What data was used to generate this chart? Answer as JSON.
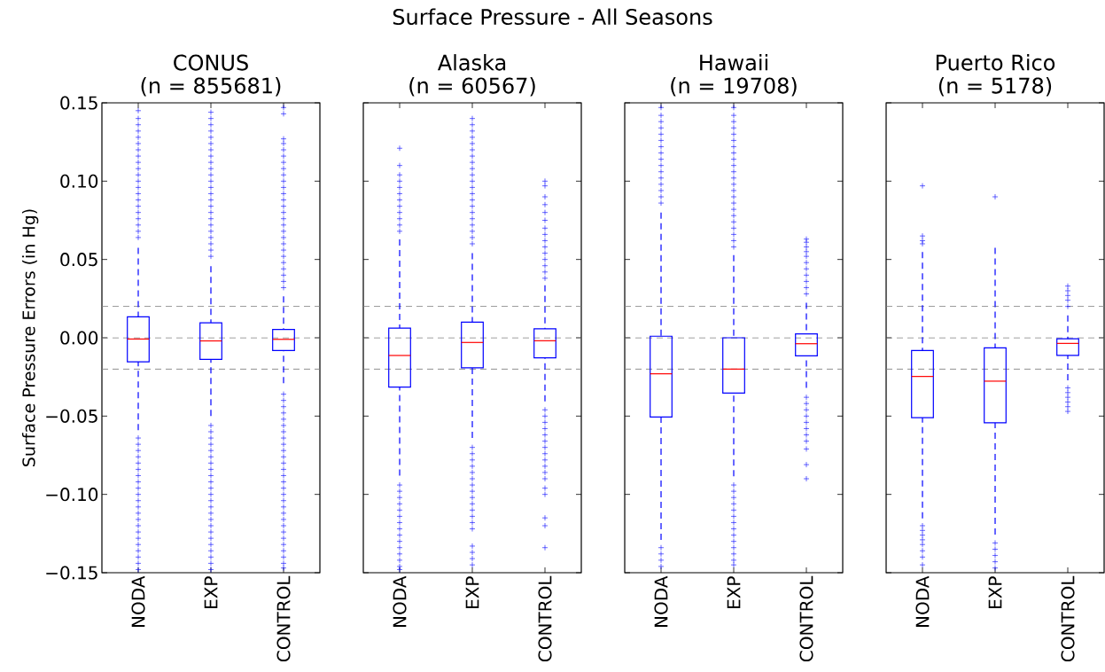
{
  "chart_data": [
    {
      "type": "box",
      "title": "CONUS",
      "subtitle": "(n = 855681)",
      "ylabel": "Surface Pressure Errors (in Hg)",
      "annotations": [
        "Surface Pressure - All Seasons"
      ],
      "categories": [
        "NODA",
        "EXP",
        "CONTROL"
      ],
      "color": "#0000ff",
      "ylim": [
        -0.15,
        0.15
      ],
      "yticks": [
        {
          "value": -0.15,
          "label": "−0.15"
        },
        {
          "value": -0.1,
          "label": "−0.10"
        },
        {
          "value": -0.05,
          "label": "−0.05"
        },
        {
          "value": 0,
          "label": "0.00"
        },
        {
          "value": 0.05,
          "label": "0.05"
        },
        {
          "value": 0.1,
          "label": "0.10"
        },
        {
          "value": 0.15,
          "label": "0.15"
        }
      ],
      "ref_lines": [
        {
          "axis": "y",
          "value": 0.02,
          "color": "#808080",
          "line_style": "dashed"
        },
        {
          "axis": "y",
          "value": 0,
          "color": "#808080",
          "line_style": "dashed"
        },
        {
          "axis": "y",
          "value": -0.02,
          "color": "#808080",
          "line_style": "dashed"
        }
      ],
      "boxes": [
        {
          "low": -0.059,
          "q1": -0.0153,
          "median": -0.0008,
          "q3": 0.0134,
          "high": 0.0575,
          "outliers": [
            0.064,
            0.068,
            0.072,
            0.076,
            0.08,
            0.084,
            0.088,
            0.092,
            0.096,
            0.1,
            0.104,
            0.108,
            0.112,
            0.116,
            0.12,
            0.124,
            0.128,
            0.132,
            0.136,
            0.14,
            0.145,
            -0.064,
            -0.068,
            -0.072,
            -0.076,
            -0.08,
            -0.084,
            -0.088,
            -0.092,
            -0.096,
            -0.1,
            -0.104,
            -0.108,
            -0.112,
            -0.116,
            -0.12,
            -0.124,
            -0.128,
            -0.132,
            -0.136,
            -0.14,
            -0.144,
            -0.148
          ]
        },
        {
          "low": -0.05,
          "q1": -0.0138,
          "median": -0.002,
          "q3": 0.0096,
          "high": 0.0457,
          "outliers": [
            0.052,
            0.056,
            0.06,
            0.064,
            0.068,
            0.072,
            0.076,
            0.08,
            0.084,
            0.088,
            0.092,
            0.096,
            0.1,
            0.104,
            0.108,
            0.112,
            0.116,
            0.12,
            0.124,
            0.128,
            0.132,
            0.136,
            0.14,
            0.144,
            -0.056,
            -0.06,
            -0.064,
            -0.068,
            -0.072,
            -0.076,
            -0.08,
            -0.084,
            -0.088,
            -0.092,
            -0.096,
            -0.1,
            -0.104,
            -0.108,
            -0.112,
            -0.116,
            -0.12,
            -0.124,
            -0.128,
            -0.132,
            -0.136,
            -0.14,
            -0.144,
            -0.148
          ]
        },
        {
          "low": -0.029,
          "q1": -0.0081,
          "median": -0.001,
          "q3": 0.0053,
          "high": 0.0264,
          "outliers": [
            0.032,
            0.036,
            0.04,
            0.044,
            0.048,
            0.052,
            0.056,
            0.06,
            0.064,
            0.068,
            0.072,
            0.076,
            0.08,
            0.084,
            0.088,
            0.092,
            0.096,
            0.1,
            0.104,
            0.108,
            0.112,
            0.116,
            0.12,
            0.124,
            0.127,
            0.143,
            0.147,
            -0.036,
            -0.04,
            -0.044,
            -0.048,
            -0.052,
            -0.056,
            -0.06,
            -0.064,
            -0.068,
            -0.072,
            -0.076,
            -0.08,
            -0.084,
            -0.088,
            -0.092,
            -0.096,
            -0.1,
            -0.104,
            -0.108,
            -0.112,
            -0.116,
            -0.12,
            -0.124,
            -0.128,
            -0.132,
            -0.136,
            -0.14,
            -0.144,
            -0.147
          ]
        }
      ]
    },
    {
      "type": "box",
      "title": "Alaska",
      "subtitle": "(n = 60567)",
      "categories": [
        "NODA",
        "EXP",
        "CONTROL"
      ],
      "color": "#0000ff",
      "tick_labels": "x",
      "ylim": [
        -0.15,
        0.15
      ],
      "yticks": [
        -0.15,
        -0.1,
        -0.05,
        0,
        0.05,
        0.1,
        0.15
      ],
      "ref_lines": [
        {
          "axis": "y",
          "value": 0.02,
          "color": "#808080",
          "line_style": "dashed"
        },
        {
          "axis": "y",
          "value": 0,
          "color": "#808080",
          "line_style": "dashed"
        },
        {
          "axis": "y",
          "value": -0.02,
          "color": "#808080",
          "line_style": "dashed"
        }
      ],
      "boxes": [
        {
          "low": -0.088,
          "q1": -0.0315,
          "median": -0.0113,
          "q3": 0.0062,
          "high": 0.0628,
          "outliers": [
            0.068,
            0.072,
            0.076,
            0.08,
            0.084,
            0.088,
            0.092,
            0.096,
            0.1,
            0.104,
            0.11,
            0.121,
            -0.094,
            -0.098,
            -0.102,
            -0.106,
            -0.11,
            -0.114,
            -0.118,
            -0.122,
            -0.126,
            -0.13,
            -0.134,
            -0.138,
            -0.142,
            -0.146,
            -0.148
          ]
        },
        {
          "low": -0.064,
          "q1": -0.0192,
          "median": -0.003,
          "q3": 0.01,
          "high": 0.054,
          "outliers": [
            0.06,
            0.064,
            0.068,
            0.072,
            0.076,
            0.08,
            0.084,
            0.088,
            0.092,
            0.096,
            0.1,
            0.104,
            0.108,
            0.112,
            0.116,
            0.12,
            0.124,
            0.128,
            0.132,
            0.136,
            0.14,
            -0.07,
            -0.074,
            -0.078,
            -0.082,
            -0.086,
            -0.09,
            -0.094,
            -0.098,
            -0.102,
            -0.106,
            -0.11,
            -0.114,
            -0.118,
            -0.122,
            -0.133,
            -0.137,
            -0.141,
            -0.145
          ]
        },
        {
          "low": -0.0406,
          "q1": -0.0128,
          "median": -0.0019,
          "q3": 0.0057,
          "high": 0.0336,
          "outliers": [
            0.038,
            0.042,
            0.046,
            0.05,
            0.054,
            0.058,
            0.062,
            0.066,
            0.07,
            0.075,
            0.08,
            0.085,
            0.09,
            0.097,
            0.1,
            -0.046,
            -0.05,
            -0.054,
            -0.058,
            -0.062,
            -0.066,
            -0.07,
            -0.074,
            -0.078,
            -0.082,
            -0.086,
            -0.09,
            -0.096,
            -0.1,
            -0.115,
            -0.12,
            -0.134
          ]
        }
      ]
    },
    {
      "type": "box",
      "title": "Hawaii",
      "subtitle": "(n = 19708)",
      "categories": [
        "NODA",
        "EXP",
        "CONTROL"
      ],
      "color": "#0000ff",
      "tick_labels": "x",
      "ylim": [
        -0.15,
        0.15
      ],
      "yticks": [
        -0.15,
        -0.1,
        -0.05,
        0,
        0.05,
        0.1,
        0.15
      ],
      "ref_lines": [
        {
          "axis": "y",
          "value": 0.02,
          "color": "#808080",
          "line_style": "dashed"
        },
        {
          "axis": "y",
          "value": 0,
          "color": "#808080",
          "line_style": "dashed"
        },
        {
          "axis": "y",
          "value": -0.02,
          "color": "#808080",
          "line_style": "dashed"
        }
      ],
      "boxes": [
        {
          "low": -0.129,
          "q1": -0.0506,
          "median": -0.023,
          "q3": 0.001,
          "high": 0.08,
          "outliers": [
            0.086,
            0.09,
            0.094,
            0.098,
            0.102,
            0.106,
            0.11,
            0.114,
            0.118,
            0.122,
            0.126,
            0.13,
            0.134,
            0.138,
            0.142,
            0.147,
            -0.134,
            -0.138,
            -0.142,
            -0.146
          ]
        },
        {
          "low": -0.0885,
          "q1": -0.0353,
          "median": -0.02,
          "q3": 0,
          "high": 0.0528,
          "outliers": [
            0.058,
            0.062,
            0.066,
            0.07,
            0.074,
            0.078,
            0.082,
            0.086,
            0.09,
            0.094,
            0.098,
            0.102,
            0.106,
            0.11,
            0.114,
            0.118,
            0.122,
            0.126,
            0.13,
            0.134,
            0.138,
            0.142,
            0.147,
            -0.094,
            -0.098,
            -0.102,
            -0.106,
            -0.11,
            -0.114,
            -0.118,
            -0.122,
            -0.126,
            -0.13,
            -0.134,
            -0.138,
            -0.142,
            -0.145
          ]
        },
        {
          "low": -0.032,
          "q1": -0.0115,
          "median": -0.0038,
          "q3": 0.0025,
          "high": 0.0223,
          "outliers": [
            0.028,
            0.032,
            0.036,
            0.04,
            0.044,
            0.048,
            0.052,
            0.055,
            0.058,
            0.061,
            0.063,
            -0.038,
            -0.042,
            -0.046,
            -0.05,
            -0.054,
            -0.058,
            -0.062,
            -0.066,
            -0.071,
            -0.081,
            -0.09
          ]
        }
      ]
    },
    {
      "type": "box",
      "title": "Puerto Rico",
      "subtitle": "(n = 5178)",
      "categories": [
        "NODA",
        "EXP",
        "CONTROL"
      ],
      "color": "#0000ff",
      "tick_labels": "x",
      "ylim": [
        -0.15,
        0.15
      ],
      "yticks": [
        -0.15,
        -0.1,
        -0.05,
        0,
        0.05,
        0.1,
        0.15
      ],
      "ref_lines": [
        {
          "axis": "y",
          "value": 0.02,
          "color": "#808080",
          "line_style": "dashed"
        },
        {
          "axis": "y",
          "value": 0,
          "color": "#808080",
          "line_style": "dashed"
        },
        {
          "axis": "y",
          "value": -0.02,
          "color": "#808080",
          "line_style": "dashed"
        }
      ],
      "boxes": [
        {
          "low": -0.1153,
          "q1": -0.051,
          "median": -0.0247,
          "q3": -0.0081,
          "high": 0.0547,
          "outliers": [
            0.06,
            0.062,
            0.065,
            0.097,
            -0.12,
            -0.123,
            -0.126,
            -0.129,
            -0.132,
            -0.136,
            -0.14,
            -0.145
          ]
        },
        {
          "low": -0.1257,
          "q1": -0.0543,
          "median": -0.0277,
          "q3": -0.0064,
          "high": 0.0575,
          "outliers": [
            0.09,
            -0.131,
            -0.135,
            -0.139,
            -0.143,
            -0.147
          ]
        },
        {
          "low": -0.0272,
          "q1": -0.0113,
          "median": -0.0036,
          "q3": -0.0006,
          "high": 0.0143,
          "outliers": [
            0.02,
            0.024,
            0.027,
            0.03,
            0.033,
            -0.032,
            -0.035,
            -0.038,
            -0.041,
            -0.044,
            -0.047
          ]
        }
      ]
    }
  ]
}
